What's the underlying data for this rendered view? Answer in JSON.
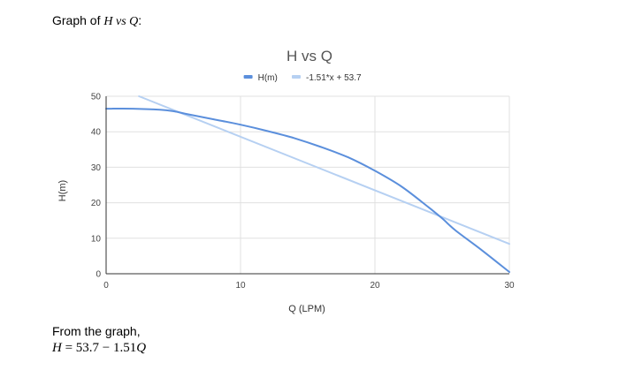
{
  "intro": {
    "prefix": "Graph of ",
    "var_h": "H",
    "vs": " vs ",
    "var_q": "Q",
    "suffix": ":"
  },
  "chart_data": {
    "type": "line",
    "title": "H vs Q",
    "xlabel": "Q (LPM)",
    "ylabel": "H(m)",
    "xlim": [
      0,
      30
    ],
    "ylim": [
      0,
      50
    ],
    "x_ticks": [
      "0",
      "10",
      "20",
      "30"
    ],
    "y_ticks": [
      "0",
      "10",
      "20",
      "30",
      "40",
      "50"
    ],
    "grid": true,
    "legend_position": "top",
    "series": [
      {
        "name": "H(m)",
        "color": "#5b8fdc",
        "x": [
          0,
          2,
          4,
          5,
          6,
          8,
          10,
          12,
          14,
          16,
          18,
          20,
          22,
          24,
          25,
          26,
          28,
          30
        ],
        "y": [
          46.5,
          46.5,
          46.2,
          45.8,
          45.0,
          43.5,
          42.0,
          40.2,
          38.2,
          35.7,
          32.8,
          29.0,
          24.5,
          18.7,
          15.6,
          12.2,
          6.5,
          0.5
        ]
      },
      {
        "name": "-1.51*x + 53.7",
        "color": "#b6d0f2",
        "x": [
          2.45,
          30
        ],
        "y": [
          50.0,
          8.4
        ]
      }
    ]
  },
  "conclusion": {
    "text": "From the graph,"
  },
  "equation": {
    "lhs": "H",
    "eq_rest": " = 53.7 − 1.51",
    "var": "Q"
  }
}
